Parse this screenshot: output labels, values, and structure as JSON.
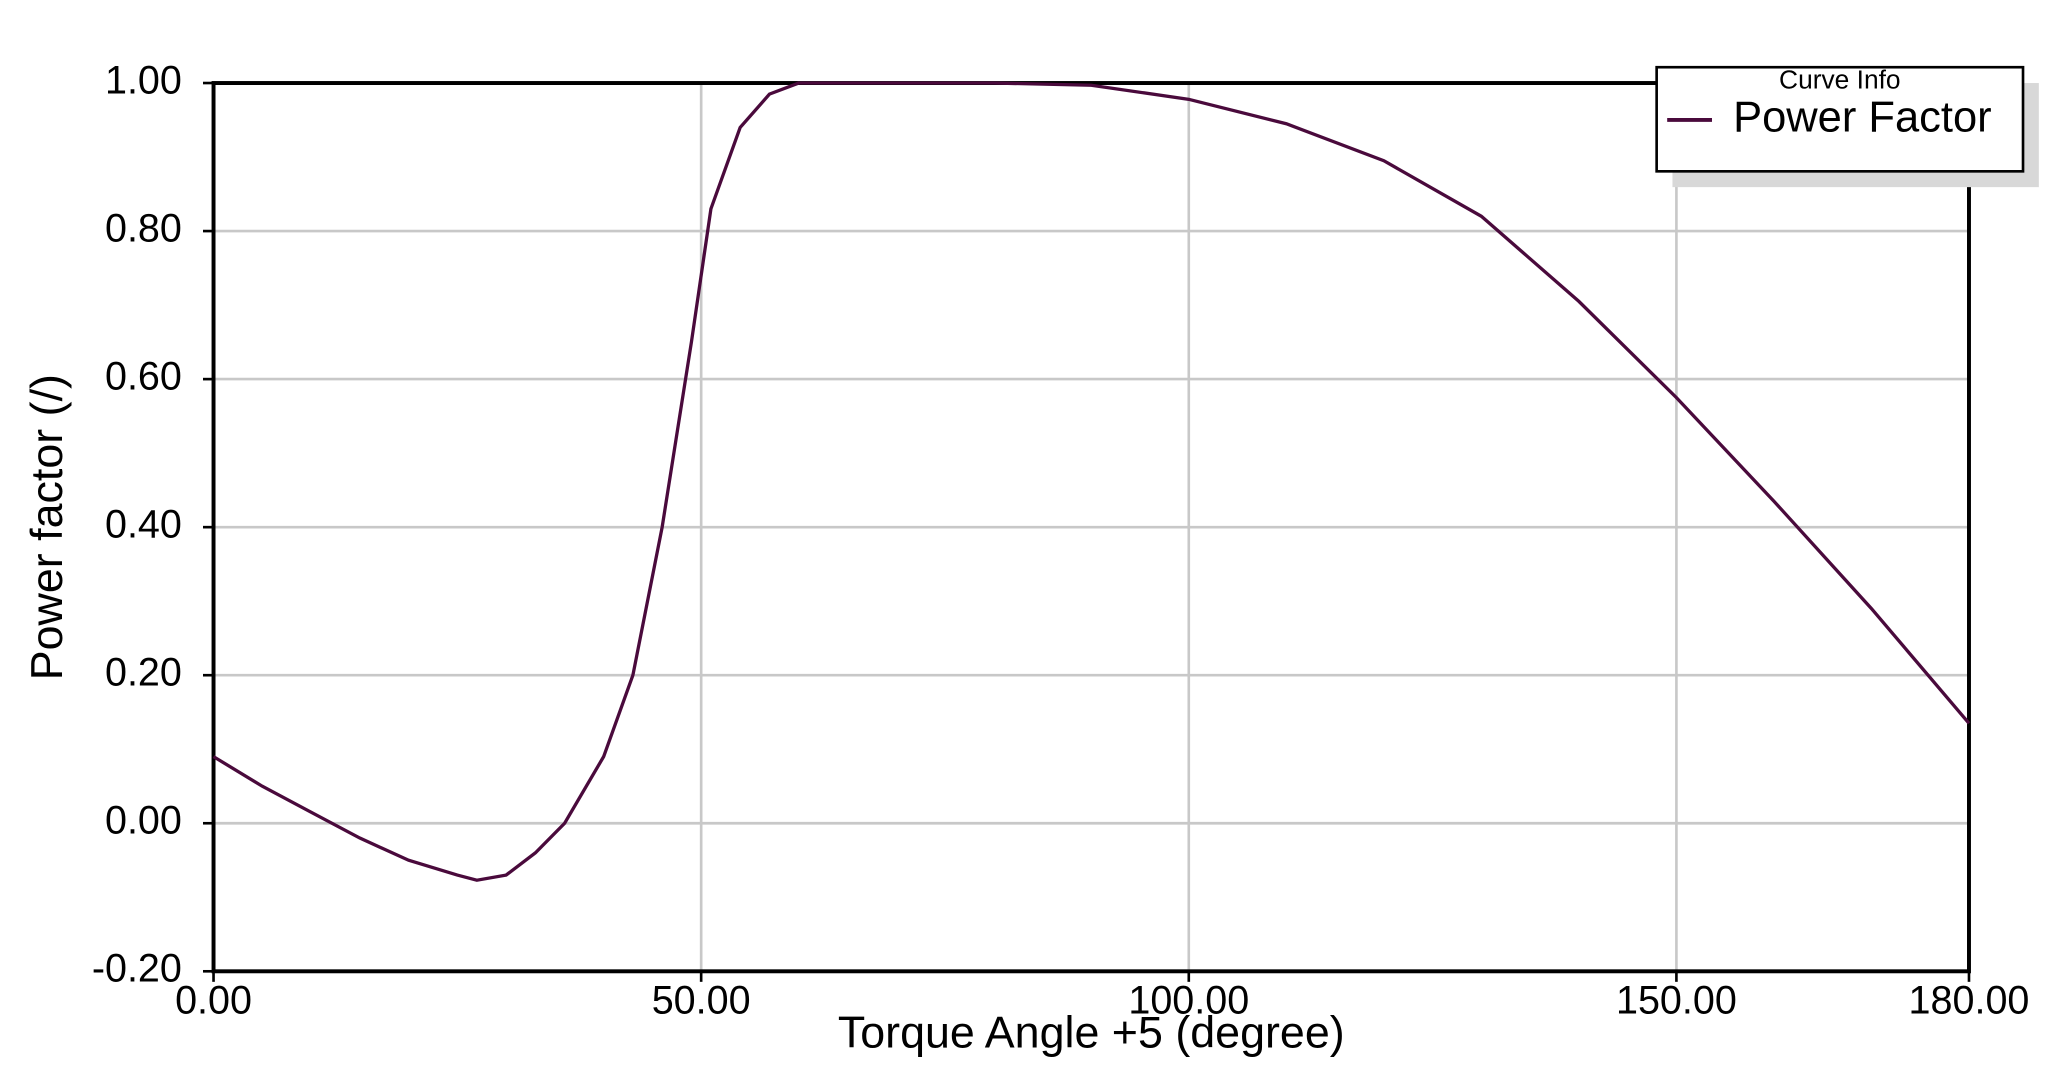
{
  "chart_data": {
    "type": "line",
    "xlabel": "Torque Angle +5 (degree)",
    "ylabel": "Power factor (/)",
    "legend_title": "Curve Info",
    "legend": "top-right",
    "grid": true,
    "x": [
      0,
      5,
      10,
      15,
      20,
      25,
      27,
      30,
      33,
      36,
      40,
      43,
      46,
      49,
      51,
      54,
      57,
      60,
      70,
      80,
      90,
      100,
      110,
      120,
      130,
      140,
      150,
      160,
      170,
      180
    ],
    "series": [
      {
        "name": "Power Factor",
        "color": "#4a0a3c",
        "values": [
          0.09,
          0.05,
          0.015,
          -0.02,
          -0.05,
          -0.07,
          -0.077,
          -0.07,
          -0.04,
          0.0,
          0.09,
          0.2,
          0.4,
          0.65,
          0.83,
          0.94,
          0.985,
          1.0,
          1.0,
          1.0,
          0.997,
          0.978,
          0.945,
          0.895,
          0.82,
          0.705,
          0.575,
          0.435,
          0.29,
          0.135
        ]
      }
    ],
    "xlim": [
      0,
      180
    ],
    "xticks": [
      {
        "value": 0,
        "label": "0.00"
      },
      {
        "value": 50,
        "label": "50.00"
      },
      {
        "value": 100,
        "label": "100.00"
      },
      {
        "value": 150,
        "label": "150.00"
      },
      {
        "value": 180,
        "label": "180.00"
      }
    ],
    "ylim": [
      -0.2,
      1.0
    ],
    "yticks": [
      {
        "value": -0.2,
        "label": "-0.20"
      },
      {
        "value": 0,
        "label": "0.00"
      },
      {
        "value": 0.2,
        "label": "0.20"
      },
      {
        "value": 0.4,
        "label": "0.40"
      },
      {
        "value": 0.6,
        "label": "0.60"
      },
      {
        "value": 0.8,
        "label": "0.80"
      },
      {
        "value": 1.0,
        "label": "1.00"
      }
    ]
  }
}
